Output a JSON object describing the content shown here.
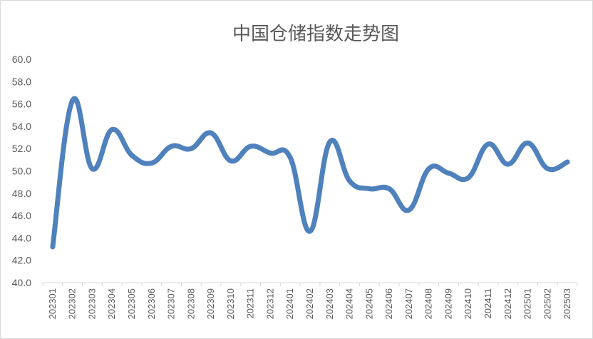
{
  "chart_data": {
    "type": "line",
    "title": "中国仓储指数走势图",
    "xlabel": "",
    "ylabel": "",
    "ylim": [
      40.0,
      60.0
    ],
    "yticks": [
      "40.0",
      "42.0",
      "44.0",
      "46.0",
      "48.0",
      "50.0",
      "52.0",
      "54.0",
      "56.0",
      "58.0",
      "60.0"
    ],
    "grid": false,
    "legend": "none",
    "line_color": "#4f81bd",
    "categories": [
      "202301",
      "202302",
      "202303",
      "202304",
      "202305",
      "202306",
      "202307",
      "202308",
      "202309",
      "202310",
      "202311",
      "202312",
      "202401",
      "202402",
      "202403",
      "202404",
      "202405",
      "202406",
      "202407",
      "202408",
      "202409",
      "202410",
      "202411",
      "202412",
      "202501",
      "202502",
      "202503"
    ],
    "series": [
      {
        "values": [
          43.2,
          56.3,
          50.2,
          53.7,
          51.4,
          50.7,
          52.2,
          52.0,
          53.4,
          50.9,
          52.2,
          51.6,
          51.2,
          44.6,
          52.6,
          49.1,
          48.4,
          48.4,
          46.5,
          50.2,
          49.8,
          49.4,
          52.4,
          50.6,
          52.5,
          50.2,
          50.8
        ]
      }
    ]
  }
}
